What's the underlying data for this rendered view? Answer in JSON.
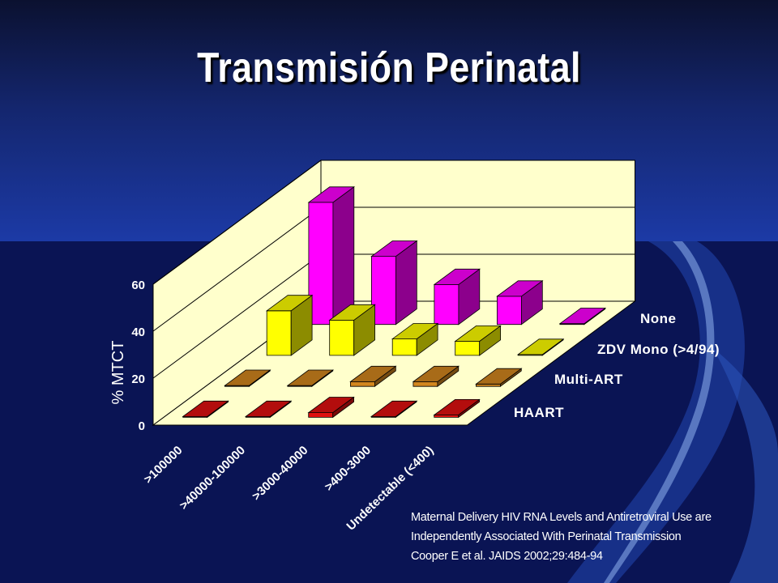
{
  "slide": {
    "title": "Transmisión Perinatal",
    "citation": [
      "Maternal Delivery HIV RNA Levels and Antiretroviral Use are",
      "Independently Associated With Perinatal Transmission",
      "Cooper E et al.  JAIDS 2002;29:484-94"
    ],
    "colors": {
      "background": "#0a1454",
      "wall": "#ffffcc",
      "text": "#ffffff"
    }
  },
  "chart_data": {
    "type": "bar",
    "subtype": "3d-column",
    "ylabel": "% MTCT",
    "ylim": [
      0,
      60
    ],
    "yticks": [
      0,
      20,
      40,
      60
    ],
    "categories": [
      ">100000",
      ">40000-100000",
      ">3000-40000",
      ">400-3000",
      "Undetectable (<400)"
    ],
    "series": [
      {
        "name": "HAART",
        "color": "#e01010",
        "values": [
          0,
          0,
          2,
          0,
          1
        ]
      },
      {
        "name": "Multi-ART",
        "color": "#d2861e",
        "values": [
          0,
          0,
          2,
          2,
          1
        ]
      },
      {
        "name": "ZDV Mono (>4/94)",
        "color": "#ffff00",
        "values": [
          19,
          15,
          7,
          6,
          0
        ]
      },
      {
        "name": "None",
        "color": "#ff00ff",
        "values": [
          52,
          29,
          17,
          12,
          0
        ]
      }
    ]
  }
}
